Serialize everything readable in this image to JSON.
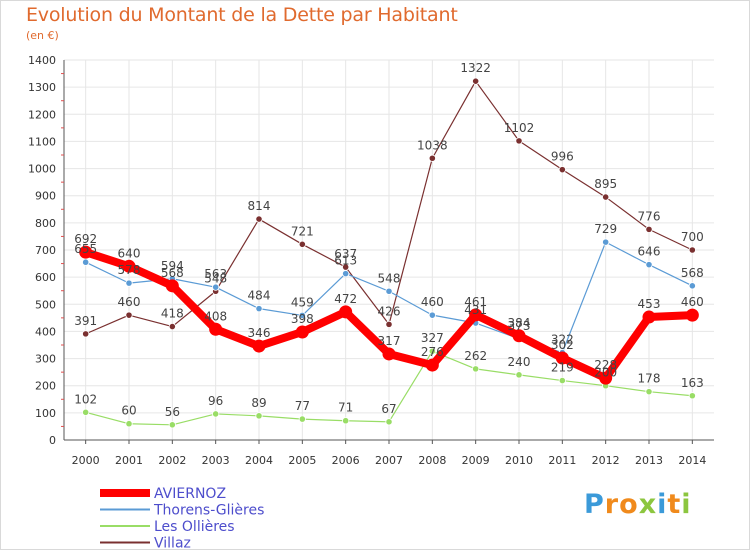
{
  "title": "Evolution du Montant de la Dette par Habitant",
  "subtitle": "(en €)",
  "logo": {
    "text": "Proxiti",
    "letters": [
      "P",
      "r",
      "o",
      "x",
      "i",
      "t",
      "i"
    ],
    "colors": [
      "#3b9ad9",
      "#f08a1c",
      "#f08a1c",
      "#8cc63f",
      "#3b9ad9",
      "#f08a1c",
      "#8cc63f"
    ]
  },
  "chart_data": {
    "type": "line",
    "title": "Evolution du Montant de la Dette par Habitant",
    "subtitle": "(en €)",
    "x": [
      "2000",
      "2001",
      "2002",
      "2003",
      "2004",
      "2005",
      "2006",
      "2007",
      "2008",
      "2009",
      "2010",
      "2011",
      "2012",
      "2013",
      "2014"
    ],
    "ylim": [
      0,
      1400
    ],
    "yticks": [
      "0",
      "100",
      "200",
      "300",
      "400",
      "500",
      "600",
      "700",
      "800",
      "900",
      "1000",
      "1100",
      "1200",
      "1300",
      "1400"
    ],
    "grid": true,
    "legend": "bottom-left",
    "series": [
      {
        "name": "AVIERNOZ",
        "color": "#ff0000",
        "values": [
          692,
          640,
          568,
          408,
          346,
          398,
          472,
          317,
          276,
          461,
          384,
          302,
          228,
          453,
          460
        ],
        "labels": [
          "692",
          "640",
          "568",
          "408",
          "346",
          "398",
          "472",
          "317",
          "276",
          "461",
          "384",
          "302",
          "228",
          "453",
          "460"
        ]
      },
      {
        "name": "Thorens-Glières",
        "color": "#5b9bd5",
        "values": [
          655,
          578,
          594,
          563,
          484,
          459,
          613,
          548,
          460,
          431,
          373,
          322,
          729,
          646,
          568
        ],
        "labels": [
          "655",
          "578",
          "594",
          "563",
          "484",
          "459",
          "613",
          "548",
          "460",
          "431",
          "373",
          "322",
          "729",
          "646",
          "568"
        ]
      },
      {
        "name": "Les Ollières",
        "color": "#99dd66",
        "values": [
          102,
          60,
          56,
          96,
          89,
          77,
          71,
          67,
          327,
          262,
          240,
          219,
          200,
          178,
          163
        ],
        "labels": [
          "102",
          "60",
          "56",
          "96",
          "89",
          "77",
          "71",
          "67",
          "327",
          "262",
          "240",
          "219",
          "200",
          "178",
          "163"
        ]
      },
      {
        "name": "Villaz",
        "color": "#7a3030",
        "values": [
          391,
          460,
          418,
          548,
          814,
          721,
          637,
          426,
          1038,
          1322,
          1102,
          996,
          895,
          776,
          700
        ],
        "labels": [
          "391",
          "460",
          "418",
          "548",
          "814",
          "721",
          "637",
          "426",
          "1038",
          "1322",
          "1102",
          "996",
          "895",
          "776",
          "700"
        ]
      }
    ]
  }
}
